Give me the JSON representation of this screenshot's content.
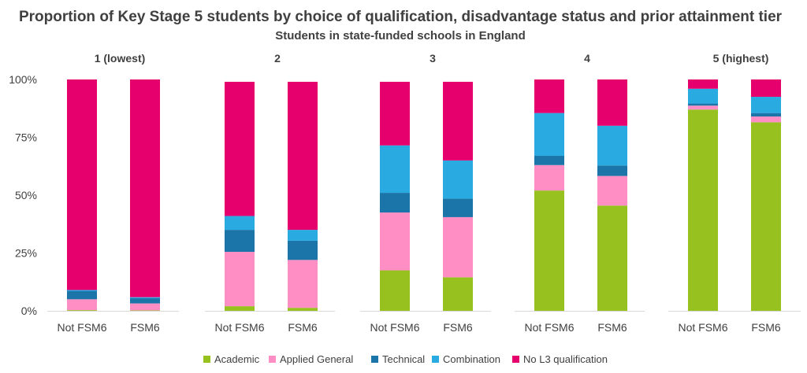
{
  "chart_data": {
    "type": "bar",
    "stacked": true,
    "title": "Proportion of Key Stage 5 students by choice of qualification, disadvantage status and prior attainment tier",
    "subtitle": "Students in state-funded schools in England",
    "y_ticks": [
      "0%",
      "25%",
      "50%",
      "75%",
      "100%"
    ],
    "ylim": [
      0,
      100
    ],
    "grid": false,
    "legend_position": "bottom",
    "categories": [
      "Not FSM6",
      "FSM6"
    ],
    "series_order": [
      "Academic",
      "Applied General",
      "Technical",
      "Combination",
      "No L3 qualification"
    ],
    "colors": {
      "Academic": "#96c11f",
      "Applied General": "#ff8ec4",
      "Technical": "#1b75a8",
      "Combination": "#29abe2",
      "No L3 qualification": "#e6006e"
    },
    "panels": [
      {
        "title": "1 (lowest)",
        "bars": [
          {
            "category": "Not FSM6",
            "Academic": 0.3,
            "Applied General": 4.7,
            "Technical": 3.5,
            "Combination": 0.5,
            "No L3 qualification": 91.0
          },
          {
            "category": "FSM6",
            "Academic": 0.2,
            "Applied General": 3.0,
            "Technical": 2.3,
            "Combination": 0.4,
            "No L3 qualification": 94.1
          }
        ]
      },
      {
        "title": "2",
        "bars": [
          {
            "category": "Not FSM6",
            "Academic": 2.0,
            "Applied General": 23.5,
            "Technical": 9.5,
            "Combination": 6.0,
            "No L3 qualification": 58.0
          },
          {
            "category": "FSM6",
            "Academic": 1.3,
            "Applied General": 20.7,
            "Technical": 8.3,
            "Combination": 4.7,
            "No L3 qualification": 64.0
          }
        ]
      },
      {
        "title": "3",
        "bars": [
          {
            "category": "Not FSM6",
            "Academic": 17.5,
            "Applied General": 25.0,
            "Technical": 8.5,
            "Combination": 20.5,
            "No L3 qualification": 27.5
          },
          {
            "category": "FSM6",
            "Academic": 14.5,
            "Applied General": 26.0,
            "Technical": 8.0,
            "Combination": 16.5,
            "No L3 qualification": 34.0
          }
        ]
      },
      {
        "title": "4",
        "bars": [
          {
            "category": "Not FSM6",
            "Academic": 52.0,
            "Applied General": 11.0,
            "Technical": 4.0,
            "Combination": 18.5,
            "No L3 qualification": 14.5
          },
          {
            "category": "FSM6",
            "Academic": 45.5,
            "Applied General": 12.8,
            "Technical": 4.5,
            "Combination": 17.2,
            "No L3 qualification": 20.0
          }
        ]
      },
      {
        "title": "5 (highest)",
        "bars": [
          {
            "category": "Not FSM6",
            "Academic": 87.0,
            "Applied General": 1.7,
            "Technical": 0.9,
            "Combination": 6.4,
            "No L3 qualification": 4.0
          },
          {
            "category": "FSM6",
            "Academic": 81.5,
            "Applied General": 2.5,
            "Technical": 1.5,
            "Combination": 7.0,
            "No L3 qualification": 7.5
          }
        ]
      }
    ]
  }
}
